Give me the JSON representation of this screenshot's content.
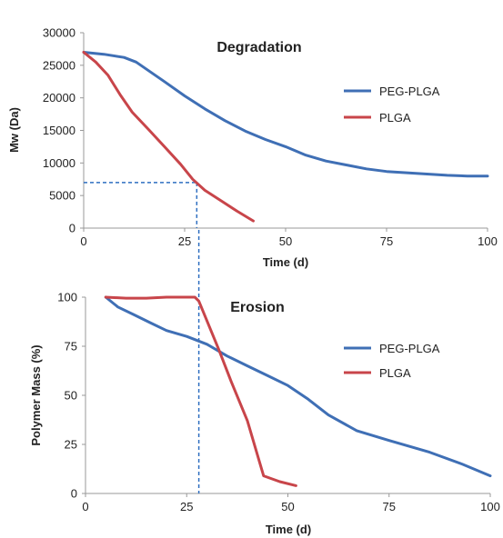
{
  "colors": {
    "peg_plga": "#3f6fb5",
    "plga": "#c8454a",
    "axis": "#999999",
    "guide": "#2f6fc0"
  },
  "chart_data": [
    {
      "type": "line",
      "title": "Degradation",
      "xlabel": "Time (d)",
      "ylabel": "Mw (Da)",
      "xlim": [
        0,
        100
      ],
      "ylim": [
        0,
        30000
      ],
      "x_ticks": [
        0,
        25,
        50,
        75,
        100
      ],
      "y_ticks": [
        0,
        5000,
        10000,
        15000,
        20000,
        25000,
        30000
      ],
      "x_tick_labels": [
        "0",
        "25",
        "50",
        "75",
        "100"
      ],
      "y_tick_labels": [
        "0",
        "5000",
        "10000",
        "15000",
        "20000",
        "25000",
        "30000"
      ],
      "grid": false,
      "legend_position": "right",
      "series": [
        {
          "name": "PEG-PLGA",
          "color": "#3f6fb5",
          "points": [
            [
              0,
              27000
            ],
            [
              5,
              26700
            ],
            [
              10,
              26200
            ],
            [
              13,
              25500
            ],
            [
              20,
              22500
            ],
            [
              25,
              20300
            ],
            [
              30,
              18300
            ],
            [
              35,
              16500
            ],
            [
              40,
              14900
            ],
            [
              45,
              13600
            ],
            [
              50,
              12500
            ],
            [
              55,
              11200
            ],
            [
              60,
              10300
            ],
            [
              65,
              9700
            ],
            [
              70,
              9100
            ],
            [
              75,
              8700
            ],
            [
              80,
              8500
            ],
            [
              85,
              8300
            ],
            [
              90,
              8100
            ],
            [
              95,
              8000
            ],
            [
              100,
              8000
            ]
          ]
        },
        {
          "name": "PLGA",
          "color": "#c8454a",
          "points": [
            [
              0,
              27000
            ],
            [
              3,
              25500
            ],
            [
              6,
              23500
            ],
            [
              9,
              20500
            ],
            [
              12,
              17800
            ],
            [
              16,
              15200
            ],
            [
              20,
              12500
            ],
            [
              24,
              9800
            ],
            [
              27,
              7500
            ],
            [
              30,
              5800
            ],
            [
              34,
              4200
            ],
            [
              38,
              2600
            ],
            [
              42,
              1100
            ]
          ]
        }
      ],
      "guide_lines": {
        "y": 7000,
        "x": 28
      }
    },
    {
      "type": "line",
      "title": "Erosion",
      "xlabel": "Time (d)",
      "ylabel": "Polymer Mass (%)",
      "xlim": [
        0,
        100
      ],
      "ylim": [
        0,
        100
      ],
      "x_ticks": [
        0,
        25,
        50,
        75,
        100
      ],
      "y_ticks": [
        0,
        25,
        50,
        75,
        100
      ],
      "x_tick_labels": [
        "0",
        "25",
        "50",
        "75",
        "100"
      ],
      "y_tick_labels": [
        "0",
        "25",
        "50",
        "75",
        "100"
      ],
      "grid": false,
      "legend_position": "right",
      "series": [
        {
          "name": "PEG-PLGA",
          "color": "#3f6fb5",
          "points": [
            [
              5,
              100
            ],
            [
              8,
              95
            ],
            [
              12,
              91
            ],
            [
              16,
              87
            ],
            [
              20,
              83
            ],
            [
              25,
              80
            ],
            [
              30,
              76
            ],
            [
              35,
              70
            ],
            [
              40,
              65
            ],
            [
              45,
              60
            ],
            [
              50,
              55
            ],
            [
              55,
              48
            ],
            [
              60,
              40
            ],
            [
              67,
              32
            ],
            [
              75,
              27
            ],
            [
              85,
              21
            ],
            [
              93,
              15
            ],
            [
              100,
              9
            ]
          ]
        },
        {
          "name": "PLGA",
          "color": "#c8454a",
          "points": [
            [
              5,
              100
            ],
            [
              10,
              99.5
            ],
            [
              15,
              99.5
            ],
            [
              20,
              100
            ],
            [
              27,
              100
            ],
            [
              28,
              98
            ],
            [
              30,
              88
            ],
            [
              33,
              73
            ],
            [
              36,
              57
            ],
            [
              40,
              37
            ],
            [
              44,
              9
            ],
            [
              48,
              6
            ],
            [
              52,
              4
            ]
          ]
        }
      ],
      "guide_lines": {
        "x": 28
      }
    }
  ]
}
